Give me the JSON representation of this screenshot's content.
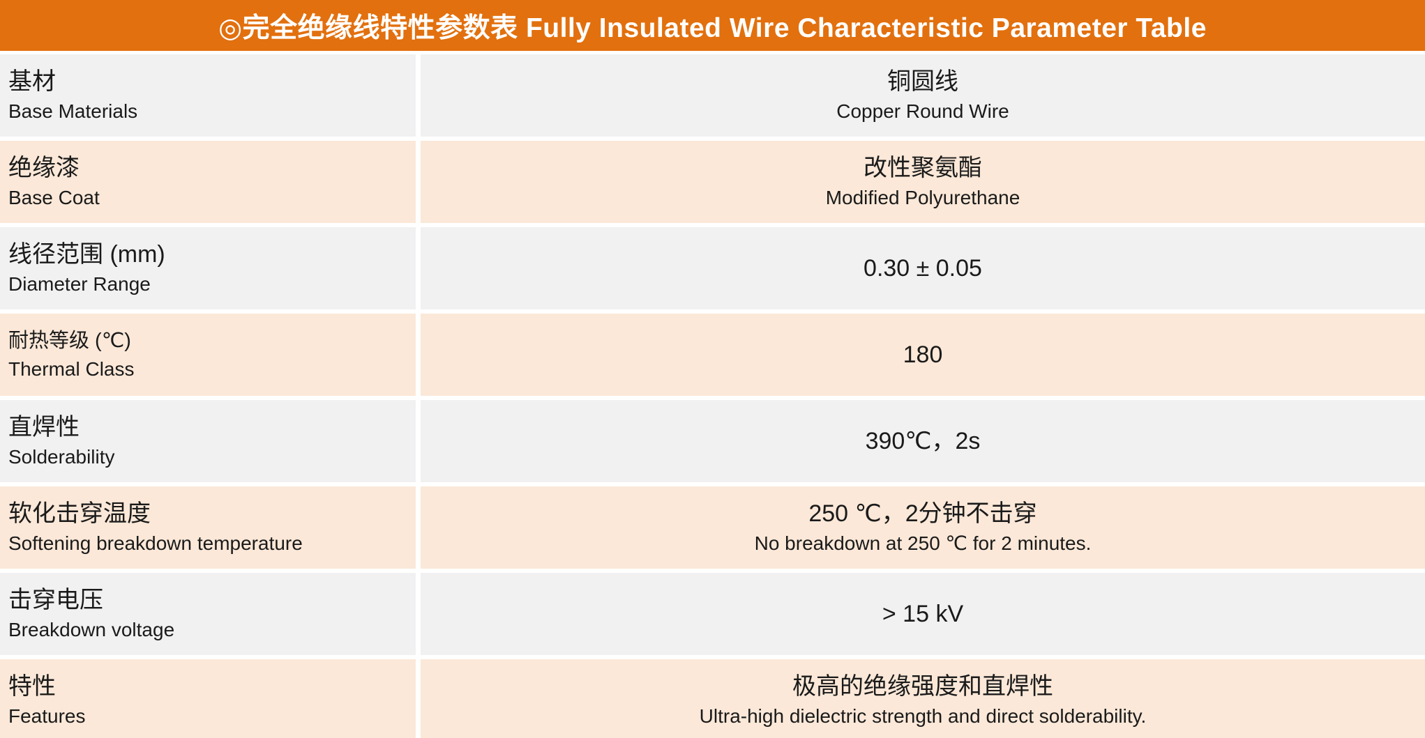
{
  "header": {
    "title": "◎完全绝缘线特性参数表 Fully Insulated Wire Characteristic Parameter Table"
  },
  "colors": {
    "header_bg": "#E2700E",
    "row_gray": "#F1F1F2",
    "row_peach": "#FBE8D8",
    "text": "#1A1A1A",
    "gap": "#FFFFFF"
  },
  "table": {
    "rows": [
      {
        "label_zh": "基材",
        "label_en": "Base Materials",
        "value_zh": "铜圆线",
        "value_en": "Copper Round Wire"
      },
      {
        "label_zh": "绝缘漆",
        "label_en": "Base Coat",
        "value_zh": "改性聚氨酯",
        "value_en": "Modified Polyurethane"
      },
      {
        "label_zh": "线径范围 (mm)",
        "label_en": "Diameter Range",
        "value_zh": "0.30 ± 0.05",
        "value_en": ""
      },
      {
        "label_zh": "耐热等级 (℃)",
        "label_en": "Thermal Class",
        "value_zh": "180",
        "value_en": ""
      },
      {
        "label_zh": "直焊性",
        "label_en": "Solderability",
        "value_zh": "390℃，2s",
        "value_en": ""
      },
      {
        "label_zh": "软化击穿温度",
        "label_en": "Softening breakdown temperature",
        "value_zh": "250 ℃，2分钟不击穿",
        "value_en": "No breakdown at 250 ℃ for 2 minutes."
      },
      {
        "label_zh": "击穿电压",
        "label_en": "Breakdown voltage",
        "value_zh": "> 15 kV",
        "value_en": ""
      },
      {
        "label_zh": "特性",
        "label_en": "Features",
        "value_zh": "极高的绝缘强度和直焊性",
        "value_en": "Ultra-high dielectric strength and direct solderability."
      }
    ]
  }
}
